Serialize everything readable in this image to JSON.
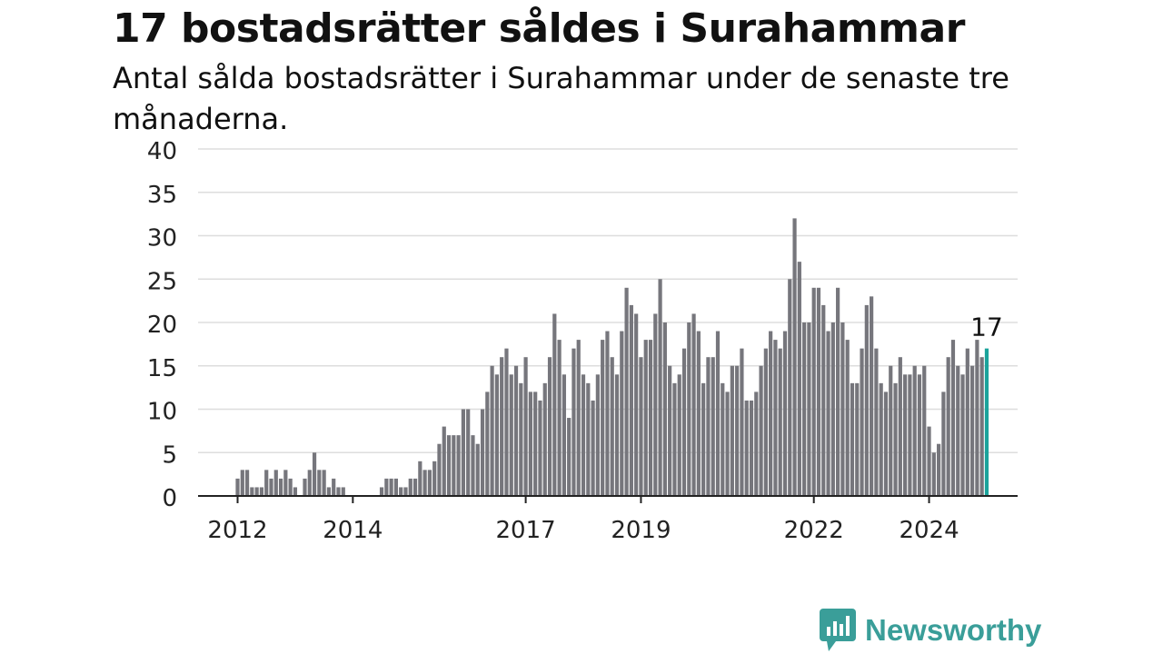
{
  "header": {
    "title": "17 bostadsrätter såldes i Surahammar",
    "subtitle": "Antal sålda bostadsrätter i Surahammar under de senaste tre månaderna."
  },
  "brand": {
    "name": "Newsworthy",
    "logo_icon": "bar-chart-speech-bubble-icon",
    "color": "#3a9e99"
  },
  "colors": {
    "bar": "#76767c",
    "highlight": "#1aa39b",
    "grid": "#dddddd",
    "axis": "#222222"
  },
  "chart_data": {
    "type": "bar",
    "title": "17 bostadsrätter såldes i Surahammar",
    "subtitle": "Antal sålda bostadsrätter i Surahammar under de senaste tre månaderna.",
    "ylim": [
      0,
      40
    ],
    "yticks": [
      0,
      5,
      10,
      15,
      20,
      25,
      30,
      35,
      40
    ],
    "xticks": [
      "2012",
      "2014",
      "2017",
      "2019",
      "2022",
      "2024"
    ],
    "grid": true,
    "start_month": "2012-01",
    "values": [
      2,
      3,
      3,
      1,
      1,
      1,
      3,
      2,
      3,
      2,
      3,
      2,
      1,
      0,
      2,
      3,
      5,
      3,
      3,
      1,
      2,
      1,
      1,
      0,
      0,
      0,
      0,
      0,
      0,
      0,
      1,
      2,
      2,
      2,
      1,
      1,
      2,
      2,
      4,
      3,
      3,
      4,
      6,
      8,
      7,
      7,
      7,
      10,
      10,
      7,
      6,
      10,
      12,
      15,
      14,
      16,
      17,
      14,
      15,
      13,
      16,
      12,
      12,
      11,
      13,
      16,
      21,
      18,
      14,
      9,
      17,
      18,
      14,
      13,
      11,
      14,
      18,
      19,
      16,
      14,
      19,
      24,
      22,
      21,
      16,
      18,
      18,
      21,
      25,
      20,
      15,
      13,
      14,
      17,
      20,
      21,
      19,
      13,
      16,
      16,
      19,
      13,
      12,
      15,
      15,
      17,
      11,
      11,
      12,
      15,
      17,
      19,
      18,
      17,
      19,
      25,
      32,
      27,
      20,
      20,
      24,
      24,
      22,
      19,
      20,
      24,
      20,
      18,
      13,
      13,
      17,
      22,
      23,
      17,
      13,
      12,
      15,
      13,
      16,
      14,
      14,
      15,
      14,
      15,
      8,
      5,
      6,
      12,
      16,
      18,
      15,
      14,
      17,
      15,
      18,
      16,
      17
    ],
    "annotations": [
      {
        "label": "17",
        "value": 17
      }
    ]
  }
}
